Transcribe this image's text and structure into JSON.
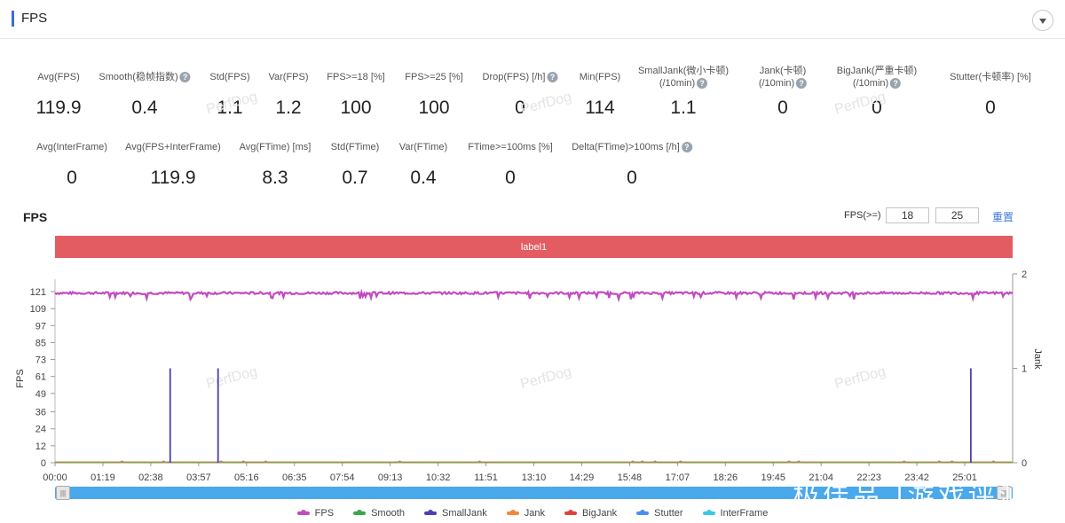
{
  "header": {
    "title": "FPS"
  },
  "metrics_row1": [
    {
      "label": "Avg(FPS)",
      "value": "119.9",
      "help": false
    },
    {
      "label": "Smooth(稳帧指数)",
      "value": "0.4",
      "help": true
    },
    {
      "label": "Std(FPS)",
      "value": "1.1",
      "help": false
    },
    {
      "label": "Var(FPS)",
      "value": "1.2",
      "help": false
    },
    {
      "label": "FPS>=18 [%]",
      "value": "100",
      "help": false
    },
    {
      "label": "FPS>=25 [%]",
      "value": "100",
      "help": false
    },
    {
      "label": "Drop(FPS) [/h]",
      "value": "0",
      "help": true
    },
    {
      "label": "Min(FPS)",
      "value": "114",
      "help": false
    },
    {
      "label": "SmallJank(微小卡顿)",
      "label2": "(/10min)",
      "value": "1.1",
      "help": true
    },
    {
      "label": "Jank(卡顿)",
      "label2": "(/10min)",
      "value": "0",
      "help": true
    },
    {
      "label": "BigJank(严重卡顿)",
      "label2": "(/10min)",
      "value": "0",
      "help": true
    },
    {
      "label": "Stutter(卡顿率) [%]",
      "value": "0",
      "help": false
    }
  ],
  "metrics_row2": [
    {
      "label": "Avg(InterFrame)",
      "value": "0",
      "help": false
    },
    {
      "label": "Avg(FPS+InterFrame)",
      "value": "119.9",
      "help": false
    },
    {
      "label": "Avg(FTime) [ms]",
      "value": "8.3",
      "help": false
    },
    {
      "label": "Std(FTime)",
      "value": "0.7",
      "help": false
    },
    {
      "label": "Var(FTime)",
      "value": "0.4",
      "help": false
    },
    {
      "label": "FTime>=100ms [%]",
      "value": "0",
      "help": false
    },
    {
      "label": "Delta(FTime)>100ms [/h]",
      "value": "0",
      "help": true
    }
  ],
  "watermark": "PerfDog",
  "chart_section": {
    "title": "FPS",
    "filter_label": "FPS(>=)",
    "filter_values": [
      "18",
      "25"
    ],
    "reset_label": "重置",
    "label_bar": "label1",
    "overlay_text": "极佳品 |游戏评测"
  },
  "colors": {
    "fps": "#c24bc0",
    "smooth": "#3aa64a",
    "smalljank": "#4c3fb5",
    "jank": "#f0883a",
    "bigjank": "#e0413c",
    "stutter": "#4c8ef0",
    "interframe": "#3cc7e8",
    "label_bar": "#e25c62"
  },
  "chart_data": {
    "type": "line",
    "x_label": "",
    "y_label": "FPS",
    "y2_label": "Jank",
    "x_ticks": [
      "00:00",
      "01:19",
      "02:38",
      "03:57",
      "05:16",
      "06:35",
      "07:54",
      "09:13",
      "10:32",
      "11:51",
      "13:10",
      "14:29",
      "15:48",
      "17:07",
      "18:26",
      "19:45",
      "21:04",
      "22:23",
      "23:42",
      "25:01"
    ],
    "y_ticks": [
      0,
      12,
      24,
      36,
      49,
      61,
      73,
      85,
      97,
      109,
      121
    ],
    "y2_ticks": [
      0,
      1,
      2
    ],
    "ylim": [
      0,
      121
    ],
    "y2lim": [
      0,
      2
    ],
    "duration_seconds": 1580,
    "fps_mean": 119.9,
    "fps_min": 114,
    "smalljank_events_seconds": [
      190,
      269,
      1511
    ],
    "smalljank_value": 1,
    "series": [
      {
        "name": "FPS",
        "color_key": "fps",
        "axis": "left"
      },
      {
        "name": "Smooth",
        "color_key": "smooth",
        "axis": "left"
      },
      {
        "name": "SmallJank",
        "color_key": "smalljank",
        "axis": "right"
      },
      {
        "name": "Jank",
        "color_key": "jank",
        "axis": "right"
      },
      {
        "name": "BigJank",
        "color_key": "bigjank",
        "axis": "right"
      },
      {
        "name": "Stutter",
        "color_key": "stutter",
        "axis": "right"
      },
      {
        "name": "InterFrame",
        "color_key": "interframe",
        "axis": "left"
      }
    ]
  }
}
